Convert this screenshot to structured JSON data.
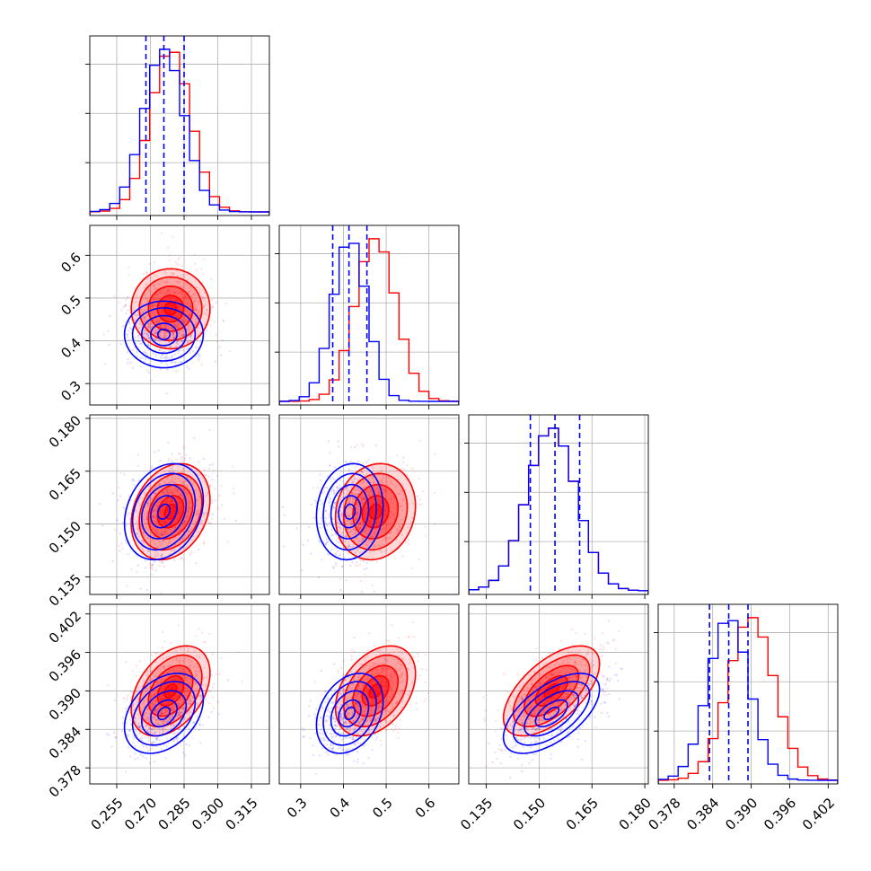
{
  "chart_data": {
    "type": "corner",
    "grid": true,
    "colors": {
      "series_a": "#ff0000",
      "series_b": "#0000ff"
    },
    "parameters": [
      {
        "range": [
          0.243,
          0.323
        ],
        "ticks": [
          "0.255",
          "0.270",
          "0.285",
          "0.300",
          "0.315"
        ]
      },
      {
        "range": [
          0.25,
          0.67
        ],
        "ticks": [
          "0.3",
          "0.4",
          "0.5",
          "0.6"
        ]
      },
      {
        "range": [
          0.13,
          0.181
        ],
        "ticks": [
          "0.135",
          "0.150",
          "0.165",
          "0.180"
        ]
      },
      {
        "range": [
          0.3755,
          0.4035
        ],
        "ticks": [
          "0.378",
          "0.384",
          "0.390",
          "0.396",
          "0.402"
        ]
      }
    ],
    "series": [
      {
        "color": "#ff0000",
        "means": [
          0.279,
          0.475,
          0.1535,
          0.39
        ],
        "sds": [
          0.009,
          0.048,
          0.007,
          0.0036
        ],
        "correlations": [
          [
            0,
            2,
            0.25
          ],
          [
            0,
            3,
            0.4
          ],
          [
            1,
            2,
            0.12
          ],
          [
            1,
            3,
            0.38
          ],
          [
            2,
            3,
            0.6
          ]
        ]
      },
      {
        "color": "#0000ff",
        "means": [
          0.276,
          0.415,
          0.1535,
          0.3865
        ],
        "sds": [
          0.009,
          0.04,
          0.007,
          0.0032
        ],
        "correlations": [
          [
            0,
            2,
            0.25
          ],
          [
            0,
            3,
            0.35
          ],
          [
            1,
            2,
            0.1
          ],
          [
            1,
            3,
            0.3
          ],
          [
            2,
            3,
            0.6
          ]
        ]
      }
    ],
    "quantile_lines": [
      [
        0.268,
        0.276,
        0.285
      ],
      [
        0.375,
        0.413,
        0.455
      ],
      [
        0.1475,
        0.1545,
        0.1615
      ],
      [
        0.3835,
        0.3865,
        0.3895
      ]
    ]
  }
}
